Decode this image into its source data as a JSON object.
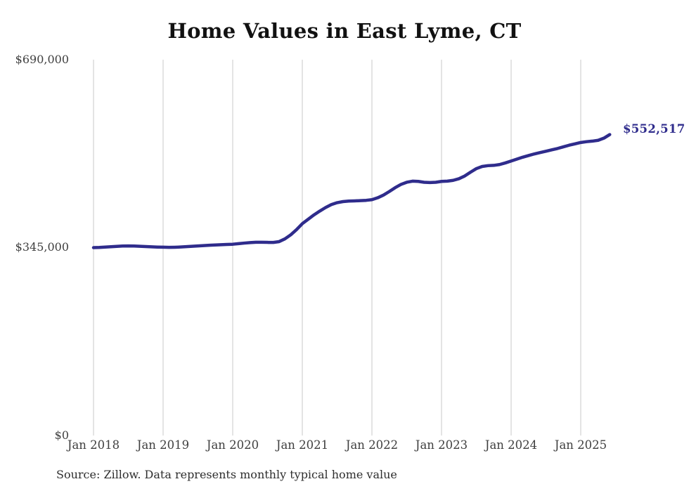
{
  "page": {
    "background_color": "#ffffff"
  },
  "colors": {
    "line": "#2f2c8c",
    "grid": "#c9c9c9",
    "axis_text": "#3f3f3f",
    "title_text": "#111111"
  },
  "chart": {
    "title": "Home Values in East Lyme, CT",
    "end_value_label": "$552,517",
    "source_note": "Source: Zillow. Data represents monthly typical home value"
  },
  "chart_data": {
    "type": "line",
    "title": "Home Values in East Lyme, CT",
    "xlabel": "",
    "ylabel": "",
    "ylim": [
      0,
      690000
    ],
    "grid": "vertical-only",
    "legend_position": "none",
    "y_tick_labels": [
      "$690,000",
      "$345,000",
      "$0"
    ],
    "y_tick_values": [
      690000,
      345000,
      0
    ],
    "x_tick_labels": [
      "Jan 2018",
      "Jan 2019",
      "Jan 2020",
      "Jan 2021",
      "Jan 2022",
      "Jan 2023",
      "Jan 2024",
      "Jan 2025"
    ],
    "x_start": "Jan 2018",
    "x_end": "Jun 2025",
    "x_interval": "monthly",
    "series": [
      {
        "name": "Typical home value",
        "final_value": 552517,
        "final_value_label": "$552,517",
        "values": [
          345000,
          345300,
          345900,
          346600,
          347300,
          347900,
          348100,
          347900,
          347400,
          346900,
          346400,
          346000,
          345800,
          345500,
          345700,
          346100,
          346700,
          347400,
          348100,
          348700,
          349300,
          349800,
          350300,
          350800,
          351200,
          352200,
          353300,
          354200,
          354800,
          354900,
          354600,
          354500,
          356000,
          361000,
          368500,
          378000,
          389000,
          397000,
          405000,
          412000,
          418500,
          424000,
          427500,
          429500,
          430500,
          430800,
          431200,
          431800,
          433000,
          436500,
          441500,
          448000,
          455000,
          461000,
          465000,
          467000,
          466500,
          465000,
          464500,
          465000,
          466500,
          467000,
          468500,
          471500,
          476500,
          483500,
          490000,
          494000,
          495500,
          496000,
          497500,
          500500,
          504000,
          507500,
          511000,
          514000,
          517000,
          519500,
          522000,
          524500,
          527000,
          530000,
          533000,
          535500,
          538000,
          539500,
          540500,
          542000,
          546000,
          552517
        ]
      }
    ]
  }
}
